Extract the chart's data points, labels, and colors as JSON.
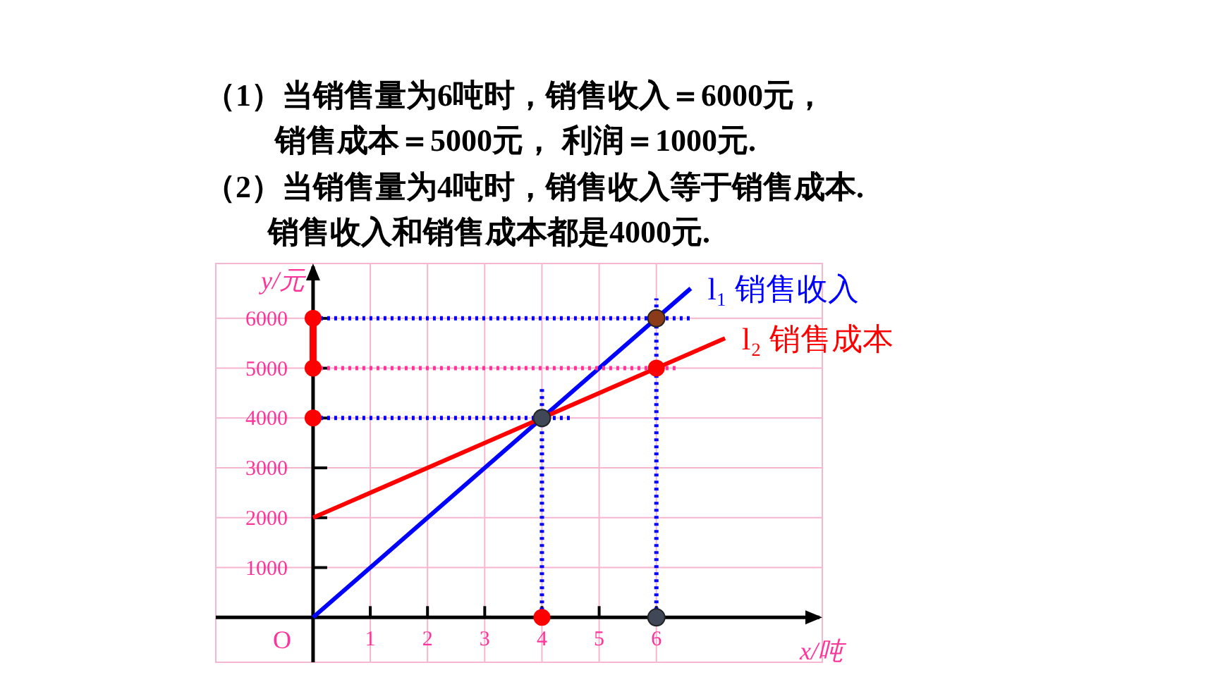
{
  "chart_data": {
    "type": "line",
    "xlabel": "x/吨",
    "ylabel": "y/元",
    "annotations": [
      "（1）当销售量为6吨时，销售收入＝6000元，",
      "销售成本＝5000元， 利润＝1000元.",
      "（2）当销售量为4吨时，销售收入等于销售成本.",
      "销售收入和销售成本都是4000元.",
      {
        "text": "O",
        "x": 0,
        "y": 0
      }
    ],
    "xlim": [
      -1.7,
      8.9
    ],
    "ylim": [
      -900,
      7100
    ],
    "xticks": [
      1,
      2,
      3,
      4,
      5,
      6
    ],
    "yticks": [
      1000,
      2000,
      3000,
      4000,
      5000,
      6000
    ],
    "grid": true,
    "series": [
      {
        "name": "l₁ 销售收入",
        "color": "#0000ff",
        "x": [
          0,
          6.6
        ],
        "values": [
          0,
          6600
        ]
      },
      {
        "name": "l₂ 销售成本",
        "color": "#ff0000",
        "x": [
          0,
          7.2
        ],
        "values": [
          2000,
          5600
        ]
      },
      {
        "color": "#0000ff",
        "line_style": "dotted",
        "x": [
          0,
          6.6
        ],
        "values": [
          6000,
          6000
        ]
      },
      {
        "color": "#ff3399",
        "line_style": "dotted",
        "x": [
          0,
          6.4
        ],
        "values": [
          5000,
          5000
        ]
      },
      {
        "color": "#0000ff",
        "line_style": "dotted",
        "x": [
          0,
          4.5
        ],
        "values": [
          4000,
          4000
        ]
      },
      {
        "color": "#0000ff",
        "line_style": "dotted",
        "x": [
          4,
          4
        ],
        "values": [
          0,
          4600
        ]
      },
      {
        "color": "#0000ff",
        "line_style": "dotted",
        "x": [
          6,
          6
        ],
        "values": [
          0,
          6400
        ]
      },
      {
        "color": "#ff0000",
        "x": [
          0,
          0
        ],
        "values": [
          5000,
          6000
        ]
      },
      {
        "type": "scatter",
        "marker": "circle",
        "x": [
          4,
          6,
          6,
          4,
          6,
          0,
          0,
          0
        ],
        "values": [
          4000,
          6000,
          5000,
          0,
          0,
          4000,
          5000,
          6000
        ],
        "colors": [
          "#404858",
          "#8b3a1a",
          "#ff0000",
          "#ff0000",
          "#404858",
          "#ff0000",
          "#ff0000",
          "#ff0000"
        ]
      }
    ]
  }
}
